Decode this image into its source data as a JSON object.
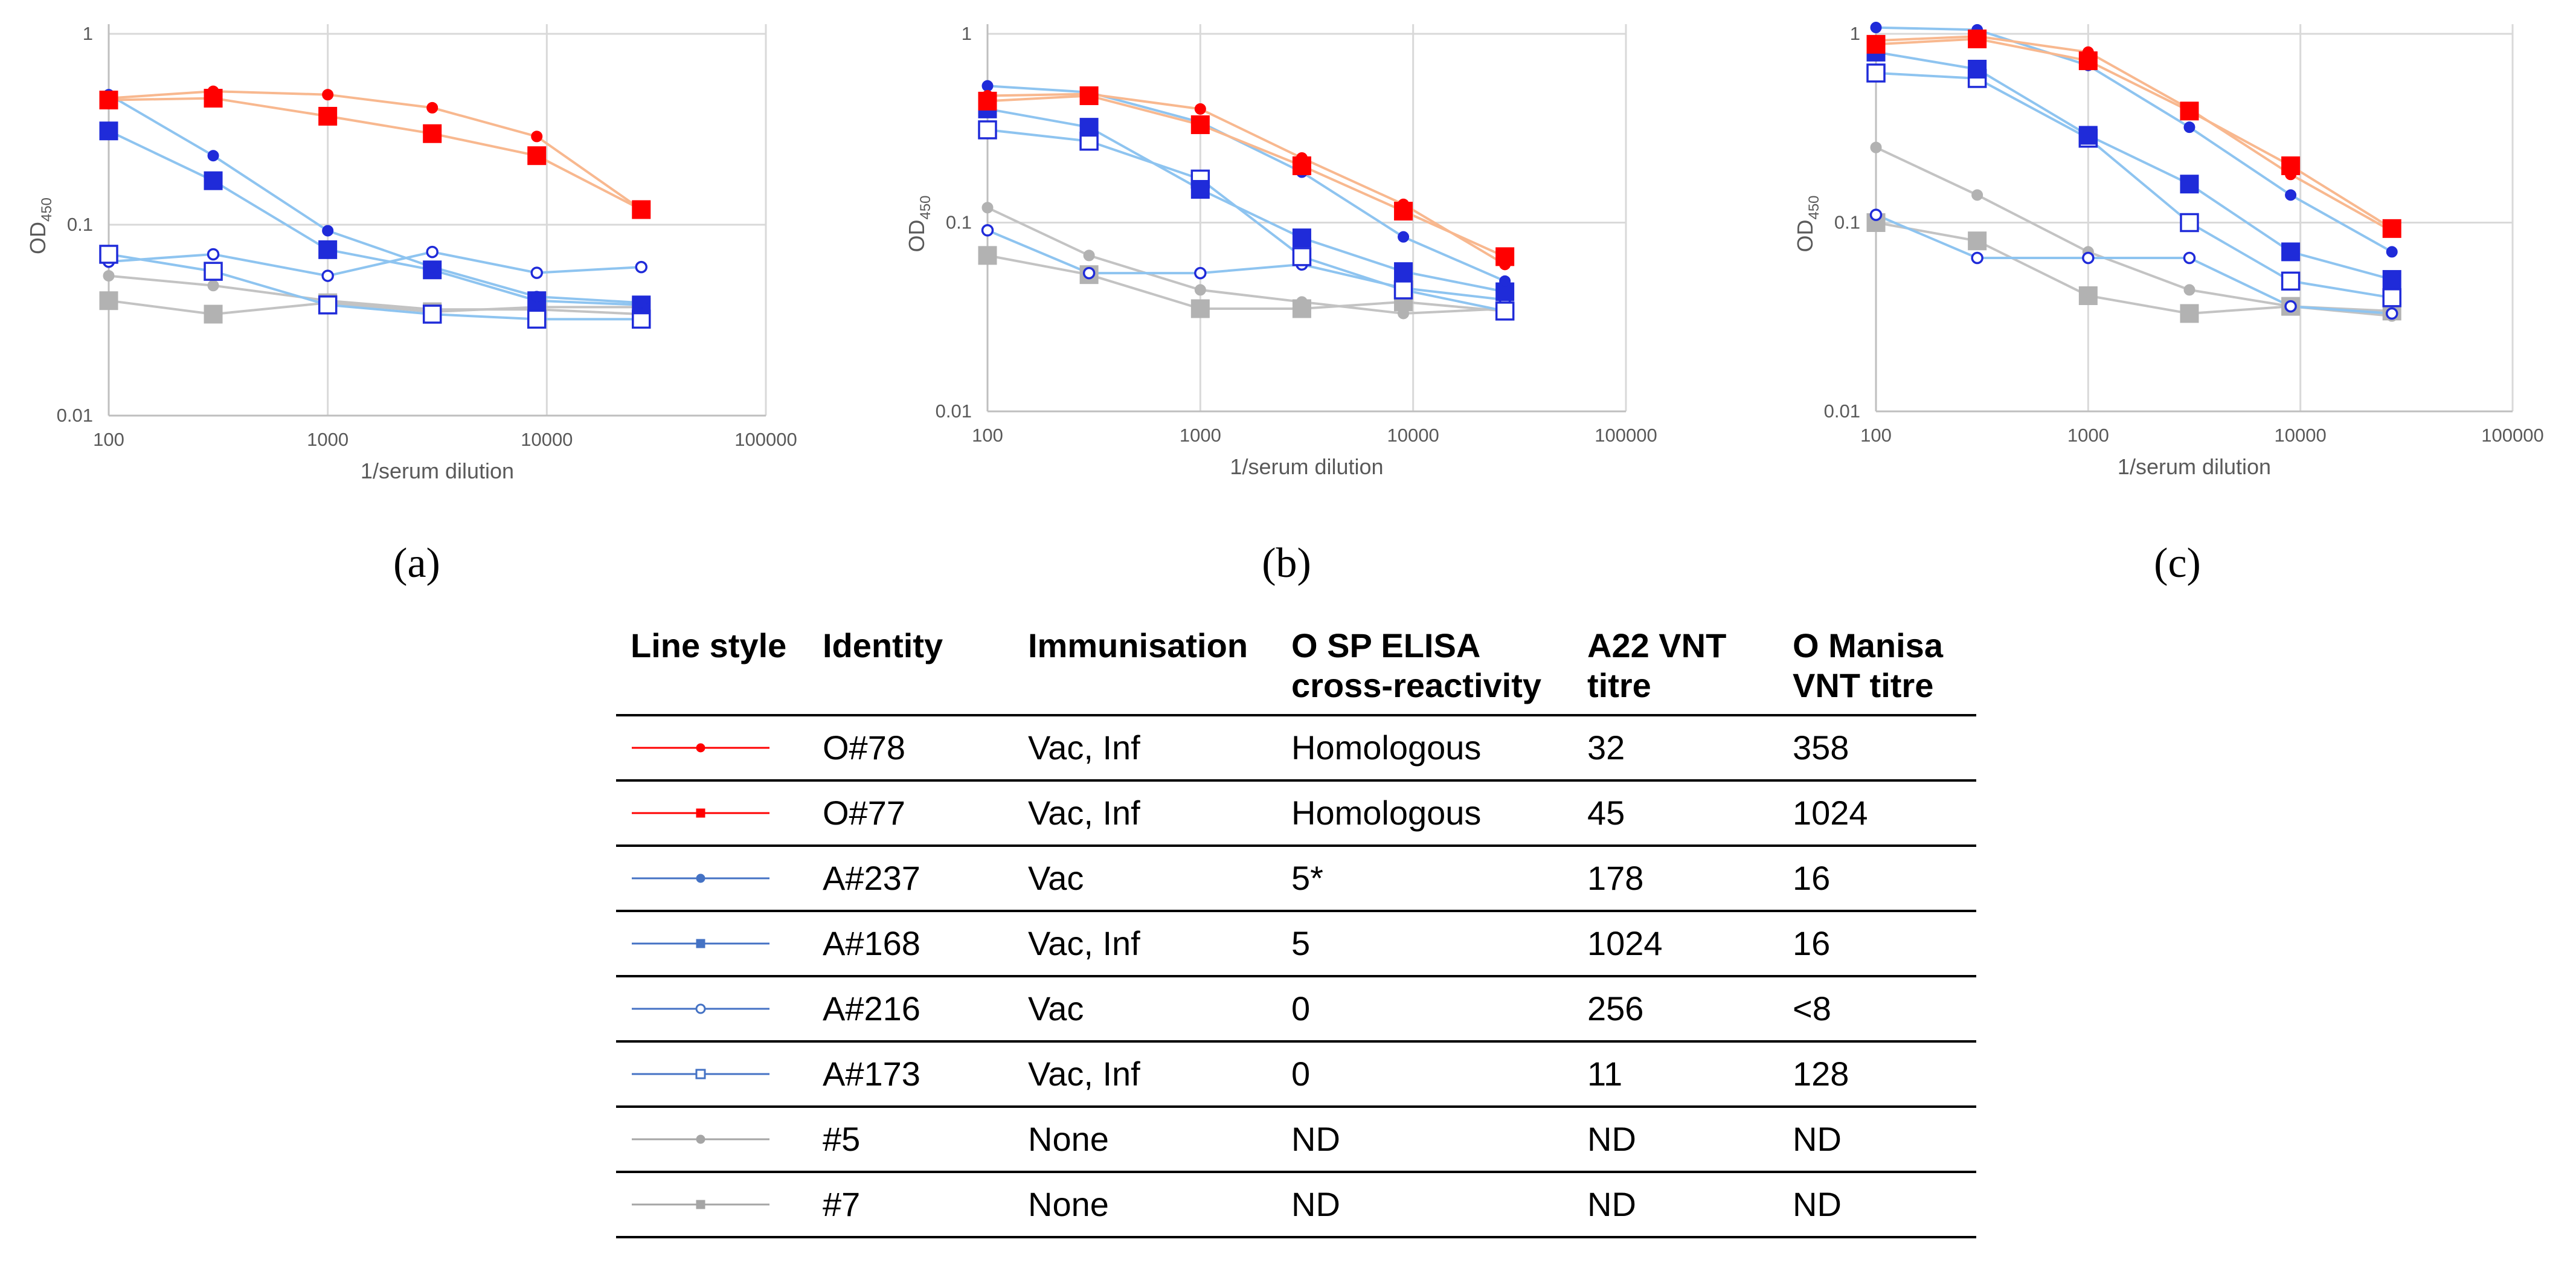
{
  "chart_data": [
    {
      "type": "line",
      "panel_label": "(a)",
      "title": "",
      "xlabel": "1/serum dilution",
      "ylabel_main": "OD",
      "ylabel_sub": "450",
      "xscale": "log",
      "yscale": "log",
      "xlim": [
        100,
        100000
      ],
      "ylim": [
        0.01,
        1
      ],
      "xticks": [
        "100",
        "1000",
        "10000",
        "100000"
      ],
      "yticks": [
        "0.01",
        "0.1",
        "1"
      ],
      "x": [
        100,
        300,
        1000,
        3000,
        9000,
        27000
      ],
      "series": [
        {
          "name": "O#78",
          "values": [
            0.46,
            0.5,
            0.48,
            0.41,
            0.29,
            0.12
          ]
        },
        {
          "name": "O#77",
          "values": [
            0.45,
            0.46,
            0.37,
            0.3,
            0.23,
            0.12
          ]
        },
        {
          "name": "A#237",
          "values": [
            0.48,
            0.23,
            0.093,
            0.06,
            0.042,
            0.039
          ]
        },
        {
          "name": "A#168",
          "values": [
            0.31,
            0.17,
            0.074,
            0.058,
            0.04,
            0.038
          ]
        },
        {
          "name": "A#216",
          "values": [
            0.064,
            0.07,
            0.054,
            0.072,
            0.056,
            0.06
          ]
        },
        {
          "name": "A#173",
          "values": [
            0.07,
            0.057,
            0.038,
            0.034,
            0.032,
            0.032
          ]
        },
        {
          "name": "#5",
          "values": [
            0.054,
            0.048,
            0.04,
            0.036,
            0.036,
            0.034
          ]
        },
        {
          "name": "#7",
          "values": [
            0.04,
            0.034,
            0.039,
            0.035,
            0.037,
            0.037
          ]
        }
      ]
    },
    {
      "type": "line",
      "panel_label": "(b)",
      "title": "",
      "xlabel": "1/serum dilution",
      "ylabel_main": "OD",
      "ylabel_sub": "450",
      "xscale": "log",
      "yscale": "log",
      "xlim": [
        100,
        100000
      ],
      "ylim": [
        0.01,
        1
      ],
      "xticks": [
        "100",
        "1000",
        "10000",
        "100000"
      ],
      "yticks": [
        "0.01",
        "0.1",
        "1"
      ],
      "x": [
        100,
        300,
        1000,
        3000,
        9000,
        27000
      ],
      "series": [
        {
          "name": "O#78",
          "values": [
            0.47,
            0.48,
            0.4,
            0.22,
            0.125,
            0.06
          ]
        },
        {
          "name": "O#77",
          "values": [
            0.44,
            0.47,
            0.33,
            0.2,
            0.115,
            0.066
          ]
        },
        {
          "name": "A#237",
          "values": [
            0.53,
            0.49,
            0.34,
            0.185,
            0.084,
            0.049
          ]
        },
        {
          "name": "A#168",
          "values": [
            0.4,
            0.32,
            0.15,
            0.083,
            0.055,
            0.043
          ]
        },
        {
          "name": "A#216",
          "values": [
            0.091,
            0.054,
            0.054,
            0.06,
            0.045,
            0.039
          ]
        },
        {
          "name": "A#173",
          "values": [
            0.31,
            0.27,
            0.17,
            0.066,
            0.044,
            0.034
          ]
        },
        {
          "name": "#5",
          "values": [
            0.12,
            0.067,
            0.044,
            0.038,
            0.033,
            0.035
          ]
        },
        {
          "name": "#7",
          "values": [
            0.067,
            0.053,
            0.035,
            0.035,
            0.038,
            0.034
          ]
        }
      ]
    },
    {
      "type": "line",
      "panel_label": "(c)",
      "title": "",
      "xlabel": "1/serum dilution",
      "ylabel_main": "OD",
      "ylabel_sub": "450",
      "xscale": "log",
      "yscale": "log",
      "xlim": [
        100,
        100000
      ],
      "ylim": [
        0.01,
        1
      ],
      "xticks": [
        "100",
        "1000",
        "10000",
        "100000"
      ],
      "yticks": [
        "0.01",
        "0.1",
        "1"
      ],
      "x": [
        100,
        300,
        1000,
        3000,
        9000,
        27000
      ],
      "series": [
        {
          "name": "O#78",
          "values": [
            0.92,
            0.97,
            0.8,
            0.4,
            0.18,
            0.09
          ]
        },
        {
          "name": "O#77",
          "values": [
            0.88,
            0.94,
            0.72,
            0.39,
            0.2,
            0.093
          ]
        },
        {
          "name": "A#237",
          "values": [
            1.08,
            1.05,
            0.68,
            0.32,
            0.14,
            0.07
          ]
        },
        {
          "name": "A#168",
          "values": [
            0.8,
            0.65,
            0.29,
            0.16,
            0.07,
            0.05
          ]
        },
        {
          "name": "A#216",
          "values": [
            0.11,
            0.065,
            0.065,
            0.065,
            0.036,
            0.033
          ]
        },
        {
          "name": "A#173",
          "values": [
            0.62,
            0.58,
            0.28,
            0.1,
            0.049,
            0.04
          ]
        },
        {
          "name": "#5",
          "values": [
            0.25,
            0.14,
            0.07,
            0.044,
            0.036,
            0.032
          ]
        },
        {
          "name": "#7",
          "values": [
            0.1,
            0.08,
            0.041,
            0.033,
            0.036,
            0.034
          ]
        }
      ]
    }
  ],
  "styles": {
    "O#78": {
      "line": "#f8b88f",
      "marker": "circle",
      "fill": "#ff0000",
      "stroke": "#ff0000",
      "legend_line": "#ff0000"
    },
    "O#77": {
      "line": "#f8b88f",
      "marker": "square",
      "fill": "#ff0000",
      "stroke": "#ff0000",
      "legend_line": "#ff0000"
    },
    "A#237": {
      "line": "#8ec4f0",
      "marker": "circle",
      "fill": "#1f2bd9",
      "stroke": "#1f2bd9",
      "legend_line": "#4472c4"
    },
    "A#168": {
      "line": "#8ec4f0",
      "marker": "square",
      "fill": "#1f2bd9",
      "stroke": "#1f2bd9",
      "legend_line": "#4472c4"
    },
    "A#216": {
      "line": "#8ec4f0",
      "marker": "circle",
      "fill": "#ffffff",
      "stroke": "#1f2bd9",
      "legend_line": "#4472c4"
    },
    "A#173": {
      "line": "#8ec4f0",
      "marker": "square",
      "fill": "#ffffff",
      "stroke": "#1f2bd9",
      "legend_line": "#4472c4"
    },
    "#5": {
      "line": "#c3c3c3",
      "marker": "circle",
      "fill": "#b2b2b2",
      "stroke": "#b2b2b2",
      "legend_line": "#a5a5a5"
    },
    "#7": {
      "line": "#c3c3c3",
      "marker": "square",
      "fill": "#b2b2b2",
      "stroke": "#b2b2b2",
      "legend_line": "#a5a5a5"
    }
  },
  "table": {
    "headers": [
      "Line style",
      "Identity",
      "Immunisation",
      "O SP ELISA cross-reactivity",
      "A22 VNT titre",
      "O Manisa VNT titre"
    ],
    "rows": [
      {
        "identity": "O#78",
        "immunisation": "Vac, Inf",
        "elisa": "Homologous",
        "a22": "32",
        "omanisa": "358"
      },
      {
        "identity": "O#77",
        "immunisation": "Vac, Inf",
        "elisa": "Homologous",
        "a22": "45",
        "omanisa": "1024"
      },
      {
        "identity": "A#237",
        "immunisation": "Vac",
        "elisa": "5*",
        "a22": "178",
        "omanisa": "16"
      },
      {
        "identity": "A#168",
        "immunisation": "Vac, Inf",
        "elisa": "5",
        "a22": "1024",
        "omanisa": "16"
      },
      {
        "identity": "A#216",
        "immunisation": "Vac",
        "elisa": "0",
        "a22": "256",
        "omanisa": "<8"
      },
      {
        "identity": "A#173",
        "immunisation": "Vac, Inf",
        "elisa": "0",
        "a22": "11",
        "omanisa": "128"
      },
      {
        "identity": "#5",
        "immunisation": "None",
        "elisa": "ND",
        "a22": "ND",
        "omanisa": "ND"
      },
      {
        "identity": "#7",
        "immunisation": "None",
        "elisa": "ND",
        "a22": "ND",
        "omanisa": "ND"
      }
    ]
  }
}
